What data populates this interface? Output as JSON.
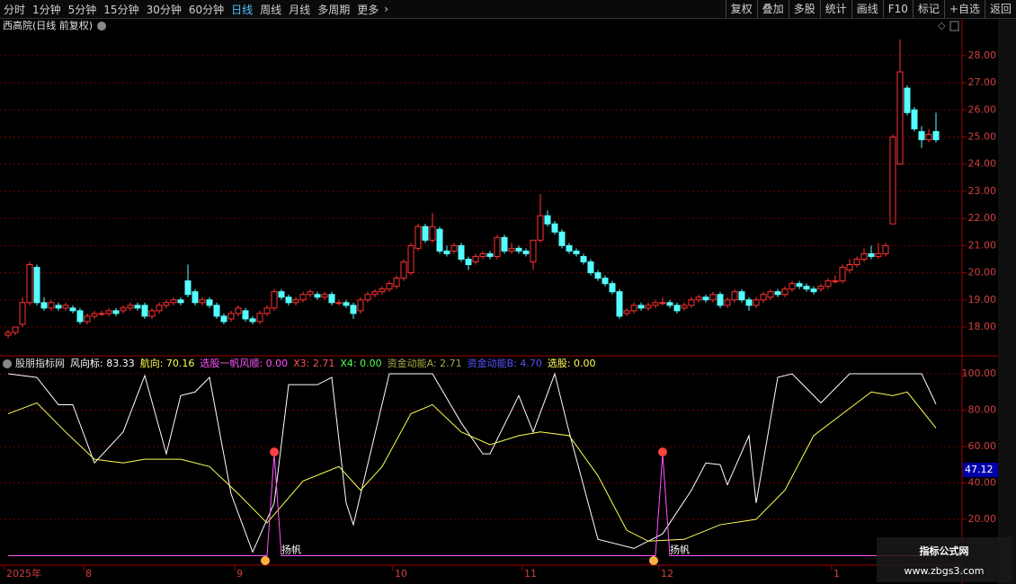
{
  "toolbar": {
    "left": [
      "分时",
      "1分钟",
      "5分钟",
      "15分钟",
      "30分钟",
      "60分钟",
      "日线",
      "周线",
      "月线",
      "多周期",
      "更多"
    ],
    "active_index": 6,
    "right": [
      "复权",
      "叠加",
      "多股",
      "统计",
      "画线",
      "F10",
      "标记",
      "+自选",
      "返回"
    ]
  },
  "chart_data": [
    {
      "type": "candlestick",
      "title": "西高院(日线 前复权)",
      "up_color": "#ff3232",
      "down_color": "#54ffff",
      "ylim": [
        17.04,
        28.79
      ],
      "yticks": [
        {
          "value": 18,
          "label": "18.00"
        },
        {
          "value": 19,
          "label": "19.00"
        },
        {
          "value": 20,
          "label": "20.00"
        },
        {
          "value": 21,
          "label": "21.00"
        },
        {
          "value": 22,
          "label": "22.00"
        },
        {
          "value": 23,
          "label": "23.00"
        },
        {
          "value": 24,
          "label": "24.00"
        },
        {
          "value": 25,
          "label": "25.00"
        },
        {
          "value": 26,
          "label": "26.00"
        },
        {
          "value": 27,
          "label": "27.00"
        },
        {
          "value": 28,
          "label": "28.00"
        }
      ],
      "grid": true,
      "candles": [
        [
          17.7,
          17.9,
          17.6,
          17.8
        ],
        [
          17.8,
          18.0,
          17.7,
          18.0
        ],
        [
          18.1,
          19.1,
          18.0,
          18.9
        ],
        [
          18.9,
          20.4,
          18.8,
          20.3
        ],
        [
          20.2,
          20.3,
          18.8,
          18.9
        ],
        [
          18.9,
          19.1,
          18.6,
          18.7
        ],
        [
          18.7,
          19.0,
          18.6,
          18.9
        ],
        [
          18.8,
          18.9,
          18.6,
          18.7
        ],
        [
          18.7,
          18.9,
          18.6,
          18.8
        ],
        [
          18.7,
          18.8,
          18.5,
          18.6
        ],
        [
          18.6,
          18.7,
          18.1,
          18.2
        ],
        [
          18.2,
          18.5,
          18.1,
          18.4
        ],
        [
          18.4,
          18.6,
          18.3,
          18.5
        ],
        [
          18.5,
          18.6,
          18.4,
          18.5
        ],
        [
          18.5,
          18.7,
          18.4,
          18.6
        ],
        [
          18.6,
          18.7,
          18.4,
          18.5
        ],
        [
          18.6,
          18.8,
          18.5,
          18.7
        ],
        [
          18.7,
          18.9,
          18.6,
          18.8
        ],
        [
          18.8,
          18.9,
          18.6,
          18.7
        ],
        [
          18.8,
          18.9,
          18.3,
          18.4
        ],
        [
          18.4,
          18.7,
          18.3,
          18.6
        ],
        [
          18.6,
          18.9,
          18.5,
          18.8
        ],
        [
          18.8,
          19.0,
          18.7,
          18.9
        ],
        [
          18.9,
          19.1,
          18.8,
          19.0
        ],
        [
          19.0,
          19.1,
          18.8,
          18.9
        ],
        [
          19.7,
          20.3,
          19.1,
          19.2
        ],
        [
          19.3,
          19.4,
          18.8,
          18.9
        ],
        [
          18.9,
          19.1,
          18.8,
          19.0
        ],
        [
          19.0,
          19.1,
          18.7,
          18.8
        ],
        [
          18.8,
          18.9,
          18.3,
          18.4
        ],
        [
          18.4,
          18.5,
          18.1,
          18.2
        ],
        [
          18.3,
          18.6,
          18.2,
          18.5
        ],
        [
          18.5,
          18.8,
          18.4,
          18.7
        ],
        [
          18.6,
          18.7,
          18.2,
          18.3
        ],
        [
          18.3,
          18.4,
          18.1,
          18.2
        ],
        [
          18.2,
          18.6,
          18.1,
          18.5
        ],
        [
          18.5,
          18.8,
          18.4,
          18.7
        ],
        [
          18.7,
          19.4,
          18.6,
          19.3
        ],
        [
          19.3,
          19.4,
          19.0,
          19.1
        ],
        [
          19.1,
          19.2,
          18.8,
          18.9
        ],
        [
          18.9,
          19.1,
          18.8,
          19.0
        ],
        [
          19.0,
          19.3,
          18.9,
          19.2
        ],
        [
          19.2,
          19.4,
          19.1,
          19.3
        ],
        [
          19.2,
          19.3,
          19.0,
          19.1
        ],
        [
          19.1,
          19.3,
          19.0,
          19.2
        ],
        [
          19.2,
          19.3,
          18.8,
          18.9
        ],
        [
          18.9,
          19.0,
          18.8,
          18.9
        ],
        [
          18.9,
          19.0,
          18.7,
          18.8
        ],
        [
          18.8,
          18.9,
          18.3,
          18.5
        ],
        [
          18.6,
          19.1,
          18.5,
          19.0
        ],
        [
          19.0,
          19.3,
          18.9,
          19.2
        ],
        [
          19.2,
          19.4,
          19.1,
          19.3
        ],
        [
          19.3,
          19.5,
          19.2,
          19.4
        ],
        [
          19.4,
          19.7,
          19.3,
          19.6
        ],
        [
          19.5,
          19.9,
          19.4,
          19.8
        ],
        [
          19.8,
          20.5,
          19.7,
          20.4
        ],
        [
          20.0,
          21.1,
          19.9,
          21.0
        ],
        [
          20.9,
          21.8,
          20.8,
          21.7
        ],
        [
          21.7,
          21.8,
          21.1,
          21.2
        ],
        [
          21.2,
          22.2,
          21.1,
          21.7
        ],
        [
          21.6,
          21.7,
          20.7,
          20.8
        ],
        [
          20.8,
          21.0,
          20.6,
          20.7
        ],
        [
          20.8,
          21.1,
          20.7,
          21.0
        ],
        [
          21.0,
          21.1,
          20.4,
          20.5
        ],
        [
          20.5,
          20.6,
          20.1,
          20.3
        ],
        [
          20.4,
          20.7,
          20.3,
          20.6
        ],
        [
          20.6,
          20.8,
          20.5,
          20.7
        ],
        [
          20.7,
          20.8,
          20.5,
          20.6
        ],
        [
          20.6,
          21.4,
          20.5,
          21.3
        ],
        [
          21.3,
          21.4,
          20.7,
          20.8
        ],
        [
          20.8,
          21.1,
          20.7,
          20.9
        ],
        [
          20.9,
          21.0,
          20.7,
          20.8
        ],
        [
          20.8,
          20.9,
          20.6,
          20.7
        ],
        [
          20.4,
          21.2,
          20.1,
          21.2
        ],
        [
          21.2,
          22.9,
          21.1,
          22.1
        ],
        [
          22.1,
          22.3,
          21.7,
          21.8
        ],
        [
          21.8,
          21.9,
          21.4,
          21.5
        ],
        [
          21.5,
          21.6,
          20.9,
          21.0
        ],
        [
          21.0,
          21.1,
          20.7,
          20.8
        ],
        [
          20.8,
          20.9,
          20.6,
          20.7
        ],
        [
          20.6,
          20.7,
          20.3,
          20.4
        ],
        [
          20.4,
          20.5,
          19.9,
          20.0
        ],
        [
          20.0,
          20.1,
          19.7,
          19.8
        ],
        [
          19.8,
          19.9,
          19.5,
          19.6
        ],
        [
          19.6,
          19.7,
          19.2,
          19.3
        ],
        [
          19.3,
          19.4,
          18.3,
          18.4
        ],
        [
          18.5,
          18.7,
          18.4,
          18.6
        ],
        [
          18.6,
          18.9,
          18.5,
          18.8
        ],
        [
          18.8,
          18.9,
          18.6,
          18.7
        ],
        [
          18.7,
          18.9,
          18.6,
          18.8
        ],
        [
          18.8,
          19.0,
          18.7,
          18.9
        ],
        [
          18.9,
          19.1,
          18.8,
          18.9
        ],
        [
          18.9,
          19.0,
          18.7,
          18.8
        ],
        [
          18.8,
          18.9,
          18.5,
          18.6
        ],
        [
          18.7,
          18.9,
          18.6,
          18.8
        ],
        [
          18.8,
          19.1,
          18.7,
          19.0
        ],
        [
          19.0,
          19.2,
          18.9,
          19.1
        ],
        [
          19.1,
          19.2,
          18.9,
          19.0
        ],
        [
          19.0,
          19.3,
          18.9,
          19.2
        ],
        [
          19.2,
          19.3,
          18.7,
          18.8
        ],
        [
          18.8,
          19.1,
          18.7,
          19.0
        ],
        [
          19.0,
          19.4,
          18.9,
          19.3
        ],
        [
          19.3,
          19.4,
          18.9,
          19.0
        ],
        [
          19.0,
          19.1,
          18.6,
          18.8
        ],
        [
          18.8,
          19.1,
          18.7,
          19.0
        ],
        [
          19.0,
          19.3,
          18.9,
          19.2
        ],
        [
          19.1,
          19.4,
          19.0,
          19.3
        ],
        [
          19.3,
          19.4,
          19.1,
          19.2
        ],
        [
          19.2,
          19.5,
          19.1,
          19.4
        ],
        [
          19.4,
          19.7,
          19.3,
          19.6
        ],
        [
          19.6,
          19.7,
          19.4,
          19.5
        ],
        [
          19.5,
          19.6,
          19.3,
          19.4
        ],
        [
          19.4,
          19.5,
          19.2,
          19.3
        ],
        [
          19.4,
          19.6,
          19.3,
          19.5
        ],
        [
          19.5,
          19.8,
          19.4,
          19.7
        ],
        [
          19.7,
          19.9,
          19.6,
          19.7
        ],
        [
          19.7,
          20.3,
          19.6,
          20.2
        ],
        [
          20.1,
          20.5,
          20.0,
          20.3
        ],
        [
          20.3,
          20.6,
          20.2,
          20.5
        ],
        [
          20.5,
          20.9,
          20.4,
          20.7
        ],
        [
          20.7,
          21.0,
          20.5,
          20.6
        ],
        [
          20.6,
          21.1,
          20.5,
          20.7
        ],
        [
          20.7,
          21.1,
          20.6,
          21.0
        ],
        [
          21.8,
          25.1,
          21.8,
          25.0
        ],
        [
          24.0,
          28.6,
          24.0,
          27.4
        ],
        [
          26.8,
          26.9,
          25.8,
          25.9
        ],
        [
          26.0,
          26.1,
          25.2,
          25.3
        ],
        [
          25.2,
          25.4,
          24.6,
          24.9
        ],
        [
          24.9,
          25.3,
          24.8,
          25.1
        ],
        [
          25.2,
          25.9,
          24.8,
          24.9
        ]
      ]
    },
    {
      "type": "line",
      "title": "股朋指标网",
      "ylim": [
        -4.7,
        108.9
      ],
      "yticks": [
        {
          "value": 20,
          "label": "20.00"
        },
        {
          "value": 40,
          "label": "40.00"
        },
        {
          "value": 60,
          "label": "60.00"
        },
        {
          "value": 80,
          "label": "80.00"
        },
        {
          "value": 100,
          "label": "100.00"
        }
      ],
      "grid": true,
      "cursor_label": {
        "value": 47.12,
        "label": "47.12"
      },
      "xticks": [
        {
          "value": 0,
          "label": "2025年"
        },
        {
          "value": 11,
          "label": "8"
        },
        {
          "value": 32,
          "label": "9"
        },
        {
          "value": 54,
          "label": "10"
        },
        {
          "value": 72,
          "label": "11"
        },
        {
          "value": 91,
          "label": "12"
        },
        {
          "value": 115,
          "label": "1"
        }
      ],
      "series": [
        {
          "legend": "风向标: 83.33",
          "color": "#ffffff",
          "x": [
            0,
            4,
            7,
            9,
            12,
            16,
            19,
            22,
            24,
            26,
            28,
            31,
            34,
            37,
            39,
            43,
            45,
            47,
            48,
            53,
            59,
            63,
            66,
            67,
            71,
            73,
            76,
            78,
            82,
            87,
            91,
            95,
            97,
            99,
            100,
            103,
            104,
            107,
            109,
            113,
            117,
            127,
            129
          ],
          "values": [
            100,
            98,
            83,
            83,
            51,
            68,
            99,
            56,
            88,
            90,
            98,
            34,
            2,
            29,
            94,
            94,
            98,
            29,
            17,
            100,
            100,
            73,
            56,
            56,
            88,
            68,
            100,
            68,
            9,
            4,
            12,
            36,
            51,
            50,
            39,
            66,
            29,
            98,
            100,
            84,
            100,
            100,
            83.33
          ]
        },
        {
          "legend": "航向: 70.16",
          "color": "#ffff54",
          "x": [
            0,
            4,
            8,
            12,
            16,
            19,
            24,
            28,
            32,
            36,
            41,
            46,
            49,
            52,
            56,
            59,
            63,
            67,
            71,
            74,
            78,
            82,
            86,
            89,
            94,
            99,
            104,
            108,
            112,
            117,
            120,
            123,
            125,
            129
          ],
          "values": [
            78,
            84,
            68,
            53,
            51,
            53,
            53,
            49,
            34,
            18,
            41,
            49,
            36,
            49,
            78,
            83,
            68,
            61,
            66,
            68,
            66,
            44,
            14,
            8,
            9,
            17,
            20,
            36,
            66,
            81,
            90,
            88,
            90,
            70.16
          ]
        },
        {
          "legend": "选股一帆风顺: 0.00",
          "color": "#ff54ff",
          "x": [
            0,
            36,
            37,
            38,
            90,
            91,
            92,
            129
          ],
          "values": [
            0,
            0,
            56,
            0,
            0,
            56,
            0,
            0
          ]
        },
        {
          "legend": "X3: 2.71",
          "color": "#ff5454"
        },
        {
          "legend": "X4: 0.00",
          "color": "#54ff54"
        },
        {
          "legend": "资金动能A: 2.71",
          "color": "#a8a848"
        },
        {
          "legend": "资金动能B: 4.70",
          "color": "#5454ff"
        },
        {
          "legend": "选股: 0.00",
          "color": "#ffff54"
        }
      ],
      "annotations": [
        {
          "text": "扬帆",
          "x": 38,
          "y": 3
        },
        {
          "text": "扬帆",
          "x": 92,
          "y": 3
        }
      ]
    }
  ],
  "watermark": {
    "title": "指标公式网",
    "url": "www.zbgs3.com"
  }
}
